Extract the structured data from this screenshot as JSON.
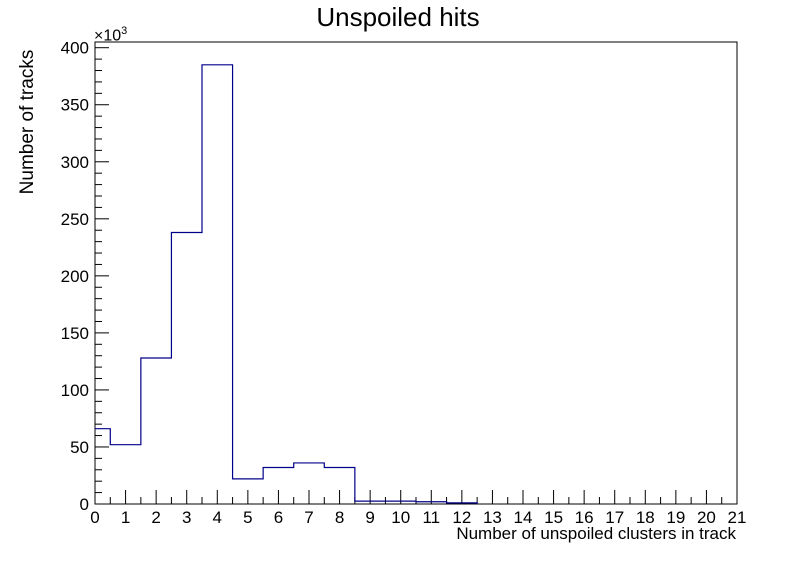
{
  "chart_data": {
    "type": "bar",
    "title": "Unspoiled hits",
    "xlabel": "Number of unspoiled clusters in track",
    "ylabel": "Number of tracks",
    "y_multiplier": "×10",
    "y_multiplier_exp": "3",
    "xlim": [
      0,
      21
    ],
    "ylim": [
      0,
      405000
    ],
    "bin_edges": [
      -0.5,
      0.5,
      1.5,
      2.5,
      3.5,
      4.5,
      5.5,
      6.5,
      7.5,
      8.5,
      9.5,
      10.5,
      11.5,
      12.5
    ],
    "values": [
      66000,
      52000,
      128000,
      238000,
      385000,
      22000,
      32000,
      36000,
      32000,
      2500,
      2500,
      2000,
      1000
    ],
    "x_ticks": [
      "0",
      "1",
      "2",
      "3",
      "4",
      "5",
      "6",
      "7",
      "8",
      "9",
      "10",
      "11",
      "12",
      "13",
      "14",
      "15",
      "16",
      "17",
      "18",
      "19",
      "20",
      "21"
    ],
    "y_ticks": [
      "0",
      "50",
      "100",
      "150",
      "200",
      "250",
      "300",
      "350",
      "400"
    ],
    "line_color": "#00008b",
    "grid": false,
    "legend": "none"
  }
}
